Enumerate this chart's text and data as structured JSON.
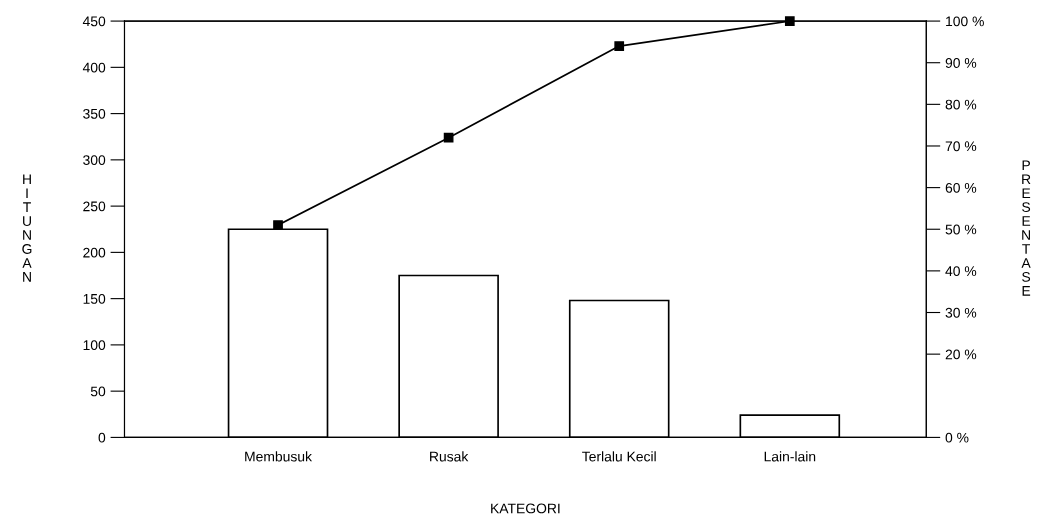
{
  "chart_data": {
    "type": "bar",
    "xlabel": "KATEGORI",
    "ylabel": "HITUNGAN",
    "y2label": "PRESENTASE",
    "categories": [
      "Membusuk",
      "Rusak",
      "Terlalu Kecil",
      "Lain-lain"
    ],
    "series": [
      {
        "color": "#ffffff",
        "values": [
          225,
          175,
          148,
          24
        ]
      },
      {
        "type": "line",
        "color": "#000000",
        "axis": "y2",
        "marker": "square",
        "values": [
          51,
          72,
          94,
          100
        ]
      }
    ],
    "ylim": [
      0,
      450
    ],
    "yticks": [
      0,
      50,
      100,
      150,
      200,
      250,
      300,
      350,
      400,
      450
    ],
    "y2lim": [
      0,
      100
    ],
    "y2ticks": [
      {
        "value": 0,
        "label": "0 %"
      },
      {
        "value": 20,
        "label": "20 %"
      },
      {
        "value": 30,
        "label": "30 %"
      },
      {
        "value": 40,
        "label": "40 %"
      },
      {
        "value": 50,
        "label": "50 %"
      },
      {
        "value": 60,
        "label": "60 %"
      },
      {
        "value": 70,
        "label": "70 %"
      },
      {
        "value": 80,
        "label": "80 %"
      },
      {
        "value": 90,
        "label": "90 %"
      },
      {
        "value": 100,
        "label": "100 %"
      }
    ],
    "grid": false,
    "legend": false
  }
}
